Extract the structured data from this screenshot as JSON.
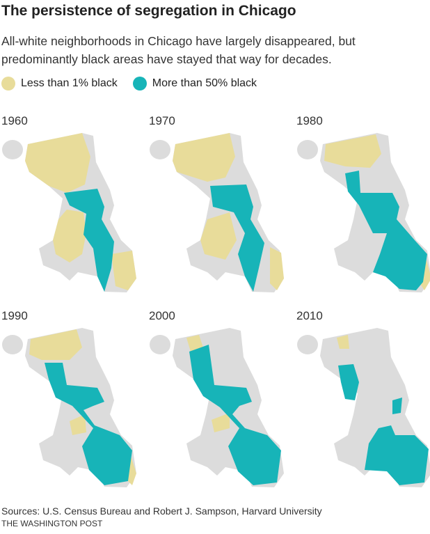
{
  "header": {
    "title": "The persistence of segregation in Chicago",
    "subtitle": "All-white neighborhoods in Chicago have largely disappeared, but predominantly black areas have stayed that way for decades."
  },
  "legend": [
    {
      "label": "Less than 1% black",
      "color": "#e8dc9a"
    },
    {
      "label": "More than 50% black",
      "color": "#17b4b8"
    }
  ],
  "maps": [
    {
      "year": "1960"
    },
    {
      "year": "1970"
    },
    {
      "year": "1980"
    },
    {
      "year": "1990"
    },
    {
      "year": "2000"
    },
    {
      "year": "2010"
    }
  ],
  "footer": {
    "source": "Sources: U.S. Census Bureau and Robert J. Sampson, Harvard University",
    "credit": "THE WASHINGTON POST"
  }
}
